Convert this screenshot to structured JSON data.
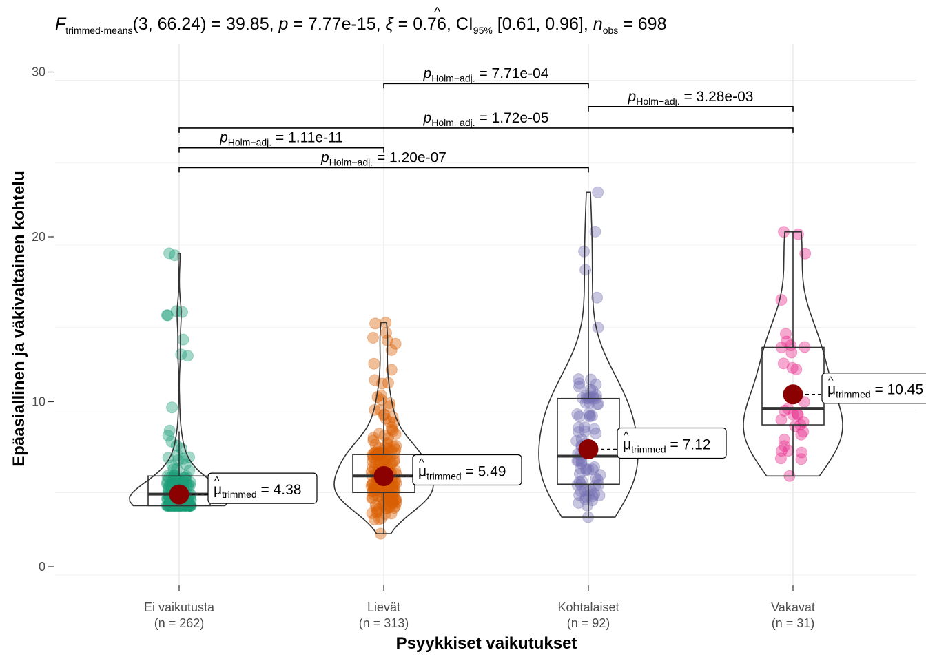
{
  "chart_data": {
    "type": "violin-box-scatter",
    "subtitle": {
      "stat_symbol": "F",
      "stat_subscript": "trimmed-means",
      "stat_args": "(3, 66.24)",
      "stat_value": "39.85",
      "p_value": "7.77e-15",
      "effsize_symbol": "ξ",
      "effsize_value": "0.76",
      "ci_label": "CI",
      "ci_level": "95%",
      "ci": "[0.61, 0.96]",
      "n_symbol": "n",
      "n_subscript": "obs",
      "n_obs": "698"
    },
    "xlabel": "Psyykkiset vaikutukset",
    "ylabel": "Epäasiallinen ja väkivaltainen kohtelu",
    "ylim": [
      -1,
      31
    ],
    "yticks": [
      0,
      10,
      20,
      30
    ],
    "grid": true,
    "groups": [
      {
        "name": "Ei vaikutusta",
        "n_label": "(n = 262)",
        "color": "#1b9e77",
        "box": {
          "q1": 3.7,
          "median": 4.4,
          "q3": 5.5
        },
        "trimmed_mean": 4.38,
        "mean_label": "4.38",
        "range": [
          3.7,
          19.0
        ]
      },
      {
        "name": "Lievät",
        "n_label": "(n = 313)",
        "color": "#d95f02",
        "box": {
          "q1": 4.5,
          "median": 5.5,
          "q3": 6.8
        },
        "trimmed_mean": 5.49,
        "mean_label": "5.49",
        "range": [
          2.0,
          14.8
        ]
      },
      {
        "name": "Kohtalaiset",
        "n_label": "(n = 92)",
        "color": "#7570b3",
        "box": {
          "q1": 5.0,
          "median": 6.7,
          "q3": 10.2
        },
        "trimmed_mean": 7.12,
        "mean_label": "7.12",
        "range": [
          3.0,
          22.7
        ]
      },
      {
        "name": "Vakavat",
        "n_label": "(n = 31)",
        "color": "#e7298a",
        "box": {
          "q1": 8.6,
          "median": 9.6,
          "q3": 13.3
        },
        "trimmed_mean": 10.45,
        "mean_label": "10.45",
        "range": [
          5.5,
          20.3
        ]
      }
    ],
    "mean_symbol": "μ",
    "mean_subscript": "trimmed",
    "mean_color": "#8b0000",
    "pairwise": [
      {
        "from": 1,
        "to": 2,
        "y": 29.3,
        "label": "7.71e-04"
      },
      {
        "from": 2,
        "to": 3,
        "y": 27.9,
        "label": "3.28e-03"
      },
      {
        "from": 0,
        "to": 3,
        "y": 26.6,
        "label": "1.72e-05"
      },
      {
        "from": 0,
        "to": 1,
        "y": 25.4,
        "label": "1.11e-11"
      },
      {
        "from": 0,
        "to": 2,
        "y": 24.2,
        "label": "1.20e-07"
      }
    ],
    "pairwise_symbol": "p",
    "pairwise_subscript": "Holm−adj."
  }
}
